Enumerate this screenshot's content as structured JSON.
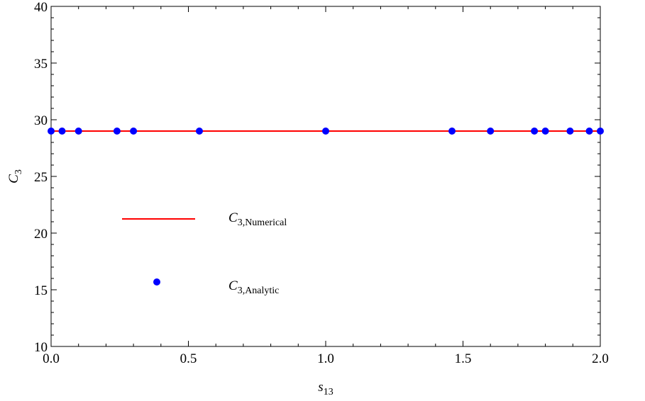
{
  "chart_data": {
    "type": "line",
    "xlabel": {
      "main": "s",
      "sub": "13"
    },
    "ylabel": {
      "main": "C",
      "sub": "3"
    },
    "xlim": [
      0.0,
      2.0
    ],
    "ylim": [
      10,
      40
    ],
    "xticks": [
      0.0,
      0.5,
      1.0,
      1.5,
      2.0
    ],
    "xtick_labels": [
      "0.0",
      "0.5",
      "1.0",
      "1.5",
      "2.0"
    ],
    "yticks": [
      10,
      15,
      20,
      25,
      30,
      35,
      40
    ],
    "ytick_labels": [
      "10",
      "15",
      "20",
      "25",
      "30",
      "35",
      "40"
    ],
    "series": [
      {
        "name": {
          "main": "C",
          "sub": "3,Numerical"
        },
        "kind": "line",
        "color": "#ff0000",
        "x": [
          0.0,
          2.0
        ],
        "y": [
          29.0,
          29.0
        ]
      },
      {
        "name": {
          "main": "C",
          "sub": "3,Analytic"
        },
        "kind": "scatter",
        "color": "#0000ff",
        "x": [
          0.0,
          0.04,
          0.1,
          0.24,
          0.3,
          0.54,
          1.0,
          1.46,
          1.6,
          1.76,
          1.8,
          1.89,
          1.96,
          2.0
        ],
        "y": [
          29.0,
          29.0,
          29.0,
          29.0,
          29.0,
          29.0,
          29.0,
          29.0,
          29.0,
          29.0,
          29.0,
          29.0,
          29.0,
          29.0
        ]
      }
    ],
    "legend_position": "center-left"
  }
}
